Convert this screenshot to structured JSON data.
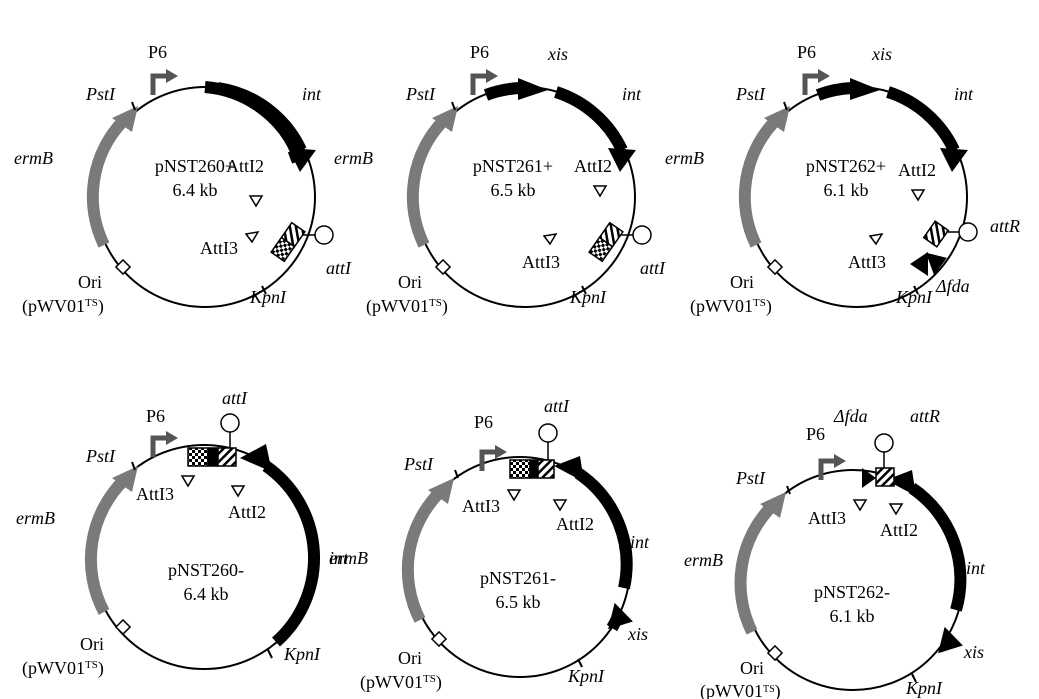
{
  "plasmids": [
    {
      "name": "pNST260+",
      "size": "6.4 kb",
      "promoter": "P6",
      "site_pst": "PstI",
      "site_kpn": "KpnI",
      "gene_int": "int",
      "gene_ermB": "ermB",
      "att_i2": "AttI2",
      "att_i3": "AttI3",
      "att_site": "attI",
      "ori": "Ori",
      "ori_src": "(pWV01",
      "ori_ts": "TS",
      "ori_close": ")"
    },
    {
      "name": "pNST261+",
      "size": "6.5 kb",
      "promoter": "P6",
      "site_pst": "PstI",
      "site_kpn": "KpnI",
      "gene_xis": "xis",
      "gene_int": "int",
      "gene_ermB": "ermB",
      "att_i2": "AttI2",
      "att_i3": "AttI3",
      "att_site": "attI",
      "ori": "Ori",
      "ori_src": "(pWV01",
      "ori_ts": "TS",
      "ori_close": ")"
    },
    {
      "name": "pNST262+",
      "size": "6.1 kb",
      "promoter": "P6",
      "site_pst": "PstI",
      "site_kpn": "KpnI",
      "gene_xis": "xis",
      "gene_int": "int",
      "gene_ermB": "ermB",
      "att_i2": "AttI2",
      "att_i3": "AttI3",
      "att_site": "attR",
      "delta": "Δfda",
      "ori": "Ori",
      "ori_src": "(pWV01",
      "ori_ts": "TS",
      "ori_close": ")"
    },
    {
      "name": "pNST260-",
      "size": "6.4 kb",
      "promoter": "P6",
      "site_pst": "PstI",
      "site_kpn": "KpnI",
      "gene_int": "int",
      "gene_ermB": "ermB",
      "overlap": "ermB",
      "att_i2": "AttI2",
      "att_i3": "AttI3",
      "att_site": "attI",
      "ori": "Ori",
      "ori_src": "(pWV01",
      "ori_ts": "TS",
      "ori_close": ")"
    },
    {
      "name": "pNST261-",
      "size": "6.5 kb",
      "promoter": "P6",
      "site_pst": "PstI",
      "site_kpn": "KpnI",
      "gene_xis": "xis",
      "gene_int": "int",
      "att_i2": "AttI2",
      "att_i3": "AttI3",
      "att_site": "attI",
      "ori": "Ori",
      "ori_src": "(pWV01",
      "ori_ts": "TS",
      "ori_close": ")"
    },
    {
      "name": "pNST262-",
      "size": "6.1 kb",
      "promoter": "P6",
      "site_pst": "PstI",
      "site_kpn": "KpnI",
      "gene_xis": "xis",
      "gene_int": "int",
      "gene_ermB": "ermB",
      "att_i2": "AttI2",
      "att_i3": "AttI3",
      "att_site": "attR",
      "delta": "Δfda",
      "ori": "Ori",
      "ori_src": "(pWV01",
      "ori_ts": "TS",
      "ori_close": ")"
    }
  ],
  "colors": {
    "gene_black": "#000000",
    "gene_gray": "#7a7a7a"
  }
}
